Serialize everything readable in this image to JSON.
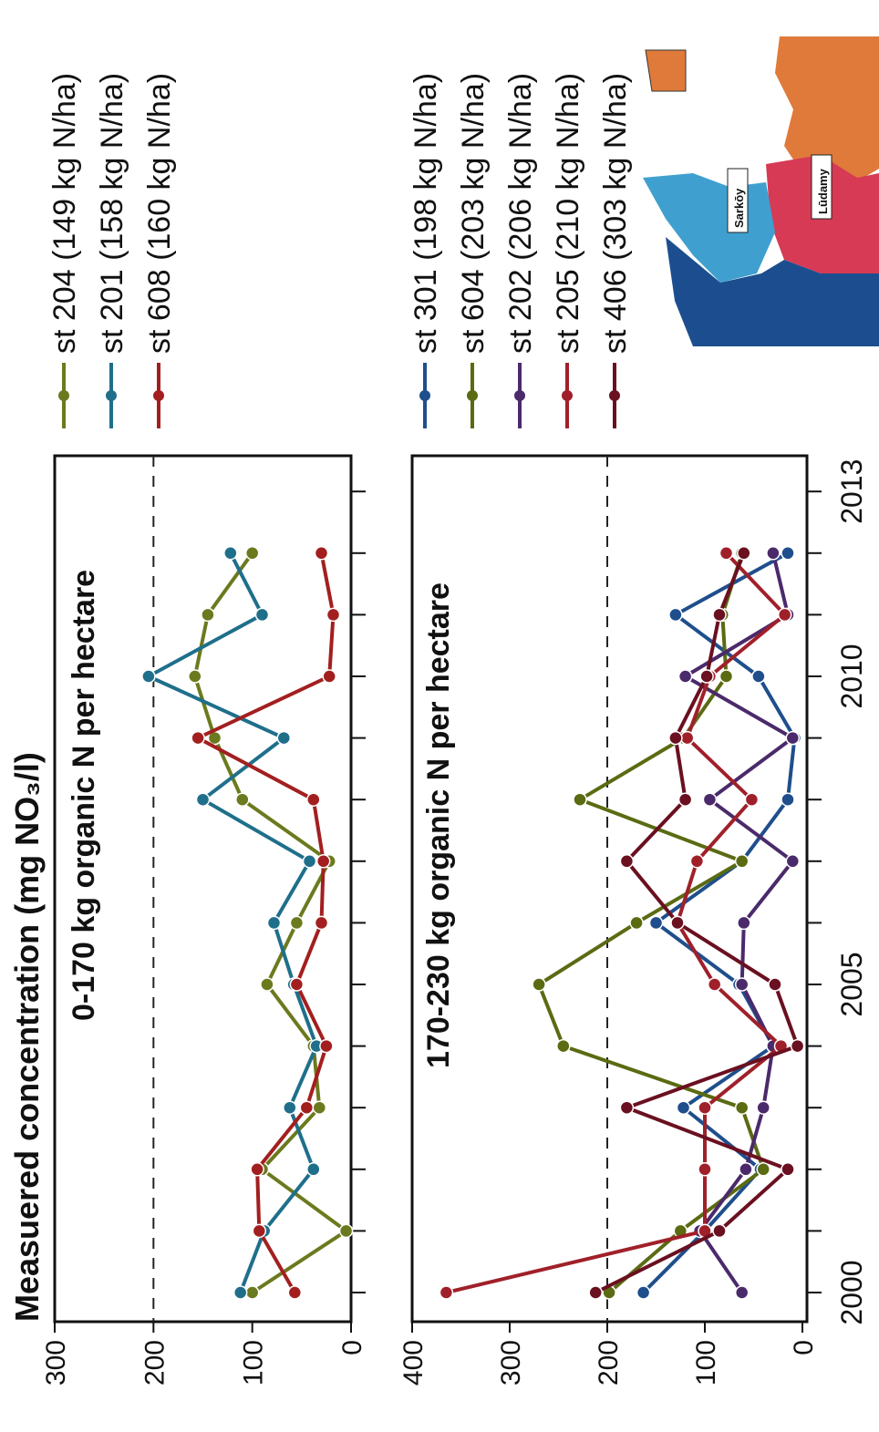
{
  "figure_title": "Measuered concentration (mg NO₃/l)",
  "chart_data": [
    {
      "type": "line",
      "panel_title": "0-170 kg organic N per hectare",
      "ylabel": "Measuered concentration (mg NO3/l)",
      "xlabel": "",
      "ylim": [
        0,
        300
      ],
      "yticks": [
        0,
        100,
        200,
        300
      ],
      "xlim": [
        1999.8,
        2013.5
      ],
      "xticks": [
        2000,
        2005,
        2010,
        2013
      ],
      "threshold": 200,
      "threshold_style": "dashed",
      "legend_position": "right",
      "series": [
        {
          "name": "st 204 (149 kg N/ha)",
          "color": "#6b7a1e",
          "x": [
            2000,
            2001,
            2002,
            2003,
            2004,
            2005,
            2006,
            2007,
            2008,
            2009,
            2010,
            2011,
            2012
          ],
          "values": [
            100,
            5,
            90,
            32,
            38,
            85,
            55,
            22,
            110,
            138,
            158,
            145,
            100
          ]
        },
        {
          "name": "st 201 (158 kg N/ha)",
          "color": "#1f6f8b",
          "x": [
            2000,
            2001,
            2002,
            2003,
            2004,
            2005,
            2006,
            2007,
            2008,
            2009,
            2010,
            2011,
            2012
          ],
          "values": [
            112,
            88,
            38,
            62,
            35,
            58,
            78,
            42,
            150,
            68,
            205,
            90,
            122
          ]
        },
        {
          "name": "st 608 (160 kg N/ha)",
          "color": "#a31f1f",
          "x": [
            2000,
            2001,
            2002,
            2003,
            2004,
            2005,
            2006,
            2007,
            2008,
            2009,
            2010,
            2011,
            2012
          ],
          "values": [
            57,
            93,
            95,
            45,
            25,
            55,
            30,
            28,
            38,
            155,
            22,
            18,
            30
          ]
        }
      ]
    },
    {
      "type": "line",
      "panel_title": "170-230 kg organic N per hectare",
      "ylabel": "",
      "xlabel": "",
      "ylim": [
        0,
        400
      ],
      "yticks": [
        0,
        100,
        200,
        300,
        400
      ],
      "xlim": [
        1999.8,
        2013.5
      ],
      "xticks": [
        2000,
        2005,
        2010,
        2013
      ],
      "xtick_labels": [
        "2000",
        "2005",
        "2010",
        "2013"
      ],
      "threshold": 200,
      "threshold_style": "dashed",
      "legend_position": "right",
      "series": [
        {
          "name": "st 301  (198 kg N/ha)",
          "color": "#1f4e8c",
          "x": [
            2000,
            2001,
            2002,
            2003,
            2004,
            2005,
            2006,
            2007,
            2008,
            2009,
            2010,
            2011,
            2012
          ],
          "values": [
            163,
            100,
            43,
            122,
            30,
            65,
            150,
            62,
            15,
            8,
            45,
            130,
            15
          ]
        },
        {
          "name": "st 604  (203 kg N/ha)",
          "color": "#5a6b12",
          "x": [
            2000,
            2001,
            2002,
            2003,
            2004,
            2005,
            2006,
            2007,
            2008,
            2009,
            2010,
            2011,
            2012
          ],
          "values": [
            198,
            125,
            40,
            62,
            245,
            270,
            170,
            62,
            228,
            122,
            78,
            82,
            62
          ]
        },
        {
          "name": "st 202  (206 kg N/ha)",
          "color": "#4b2a6b",
          "x": [
            2000,
            2001,
            2002,
            2003,
            2004,
            2005,
            2006,
            2007,
            2008,
            2009,
            2010,
            2011,
            2012
          ],
          "values": [
            62,
            105,
            58,
            40,
            30,
            62,
            60,
            10,
            95,
            10,
            120,
            15,
            30
          ]
        },
        {
          "name": "st 205  (210 kg N/ha)",
          "color": "#a0202a",
          "x": [
            2000,
            2001,
            2002,
            2003,
            2004,
            2005,
            2006,
            2007,
            2008,
            2009,
            2010,
            2011,
            2012
          ],
          "values": [
            365,
            100,
            100,
            100,
            22,
            90,
            128,
            108,
            52,
            118,
            95,
            18,
            78
          ]
        },
        {
          "name": "st 406  (303 kg N/ha)",
          "color": "#6a1020",
          "x": [
            2000,
            2001,
            2002,
            2003,
            2004,
            2005,
            2006,
            2007,
            2008,
            2009,
            2010,
            2011,
            2012
          ],
          "values": [
            212,
            85,
            15,
            180,
            5,
            28,
            128,
            180,
            120,
            130,
            98,
            85,
            60
          ]
        }
      ]
    }
  ],
  "map": {
    "labels": [
      "Sarkōy",
      "Lūdamy"
    ],
    "colors": {
      "orange": "#e07a3a",
      "red": "#d63a55",
      "light_blue": "#3fa0d0",
      "dark_blue": "#1c4e8f"
    }
  }
}
